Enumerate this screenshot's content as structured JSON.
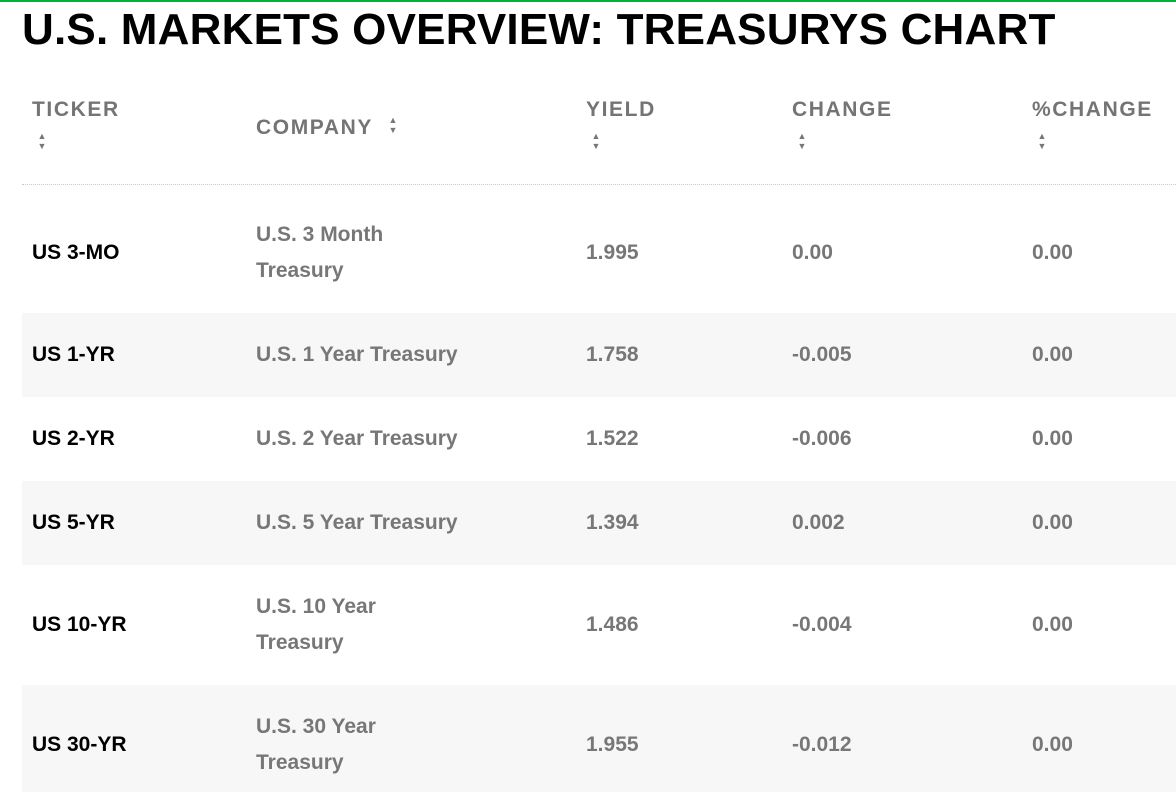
{
  "page": {
    "title": "U.S. MARKETS OVERVIEW: TREASURYS CHART",
    "accent_color": "#00b140"
  },
  "table": {
    "headers": {
      "ticker": "TICKER",
      "company": "COMPANY",
      "yield": "YIELD",
      "change": "CHANGE",
      "pct_change": "%CHANGE"
    },
    "sort_icon": "sort-up-down-icon",
    "rows": [
      {
        "ticker": "US 3-MO",
        "company_line1": "U.S. 3 Month",
        "company_line2": "Treasury",
        "yield": "1.995",
        "change": "0.00",
        "pct_change": "0.00"
      },
      {
        "ticker": "US 1-YR",
        "company_line1": "U.S. 1 Year Treasury",
        "company_line2": "",
        "yield": "1.758",
        "change": "-0.005",
        "pct_change": "0.00"
      },
      {
        "ticker": "US 2-YR",
        "company_line1": "U.S. 2 Year Treasury",
        "company_line2": "",
        "yield": "1.522",
        "change": "-0.006",
        "pct_change": "0.00"
      },
      {
        "ticker": "US 5-YR",
        "company_line1": "U.S. 5 Year Treasury",
        "company_line2": "",
        "yield": "1.394",
        "change": "0.002",
        "pct_change": "0.00"
      },
      {
        "ticker": "US 10-YR",
        "company_line1": "U.S. 10 Year",
        "company_line2": "Treasury",
        "yield": "1.486",
        "change": "-0.004",
        "pct_change": "0.00"
      },
      {
        "ticker": "US 30-YR",
        "company_line1": "U.S. 30 Year",
        "company_line2": "Treasury",
        "yield": "1.955",
        "change": "-0.012",
        "pct_change": "0.00"
      }
    ]
  }
}
